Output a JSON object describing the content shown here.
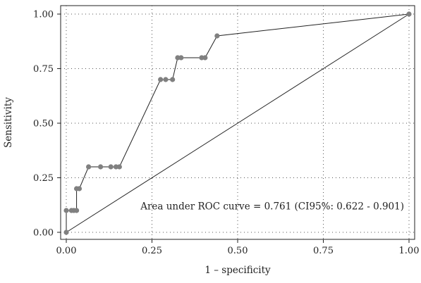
{
  "chart_data": {
    "type": "line",
    "title": "",
    "xlabel": "1 – specificity",
    "ylabel": "Sensitivity",
    "xlim": [
      0,
      1
    ],
    "ylim": [
      0,
      1
    ],
    "x_ticks": [
      "0.00",
      "0.25",
      "0.50",
      "0.75",
      "1.00"
    ],
    "y_ticks": [
      "0.00",
      "0.25",
      "0.50",
      "0.75",
      "1.00"
    ],
    "grid": true,
    "annotation": "Area under ROC curve = 0.761 (CI95%: 0.622 - 0.901)",
    "series": [
      {
        "color": "#808080",
        "points": [
          [
            0.0,
            0.0
          ],
          [
            0.0,
            0.1
          ],
          [
            0.015,
            0.1
          ],
          [
            0.022,
            0.1
          ],
          [
            0.03,
            0.1
          ],
          [
            0.03,
            0.2
          ],
          [
            0.038,
            0.2
          ],
          [
            0.065,
            0.3
          ],
          [
            0.1,
            0.3
          ],
          [
            0.13,
            0.3
          ],
          [
            0.145,
            0.3
          ],
          [
            0.155,
            0.3
          ],
          [
            0.275,
            0.7
          ],
          [
            0.29,
            0.7
          ],
          [
            0.31,
            0.7
          ],
          [
            0.325,
            0.8
          ],
          [
            0.335,
            0.8
          ],
          [
            0.395,
            0.8
          ],
          [
            0.405,
            0.8
          ],
          [
            0.44,
            0.9
          ],
          [
            1.0,
            1.0
          ]
        ]
      }
    ],
    "reference_line": [
      [
        0,
        0
      ],
      [
        1,
        1
      ]
    ]
  }
}
